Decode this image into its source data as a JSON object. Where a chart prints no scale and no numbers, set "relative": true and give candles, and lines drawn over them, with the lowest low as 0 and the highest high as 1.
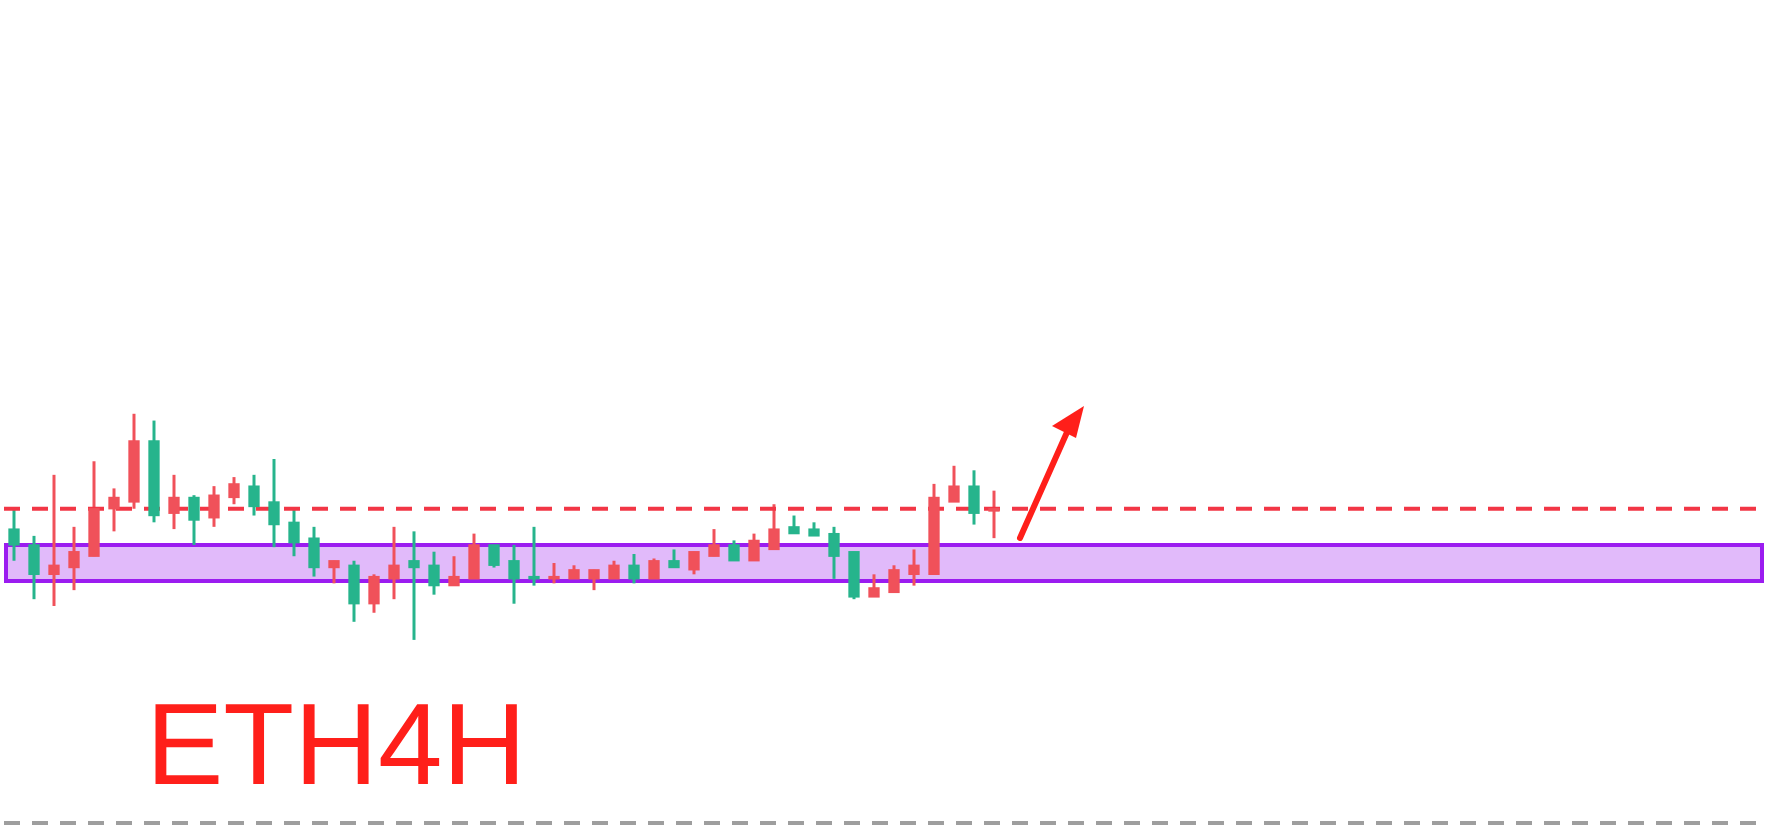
{
  "chart_data": {
    "type": "candlestick",
    "relative": true,
    "categories": [
      null,
      null,
      null,
      null,
      null,
      null,
      null,
      null,
      null,
      null,
      null,
      null,
      null,
      null,
      null,
      null,
      null,
      null,
      null,
      null,
      null,
      null,
      null,
      null,
      null,
      null,
      null,
      null,
      null,
      null,
      null,
      null,
      null,
      null,
      null,
      null,
      null,
      null,
      null,
      null,
      null,
      null,
      null,
      null,
      null,
      null,
      null,
      null,
      null,
      null,
      null,
      null,
      null,
      null,
      null,
      null,
      null,
      null,
      null,
      null,
      null,
      null,
      null,
      null,
      null,
      null,
      null,
      null,
      null,
      null,
      null,
      null,
      null,
      null,
      null,
      null,
      null,
      null,
      null,
      null,
      null,
      null,
      null,
      null,
      null,
      null,
      null,
      null
    ],
    "ohlc": [
      [
        0.49,
        0.58,
        0.35,
        0.42
      ],
      [
        0.42,
        0.46,
        0.18,
        0.29
      ],
      [
        0.29,
        0.73,
        0.15,
        0.33
      ],
      [
        0.32,
        0.5,
        0.22,
        0.39
      ],
      [
        0.37,
        0.79,
        0.37,
        0.58
      ],
      [
        0.58,
        0.67,
        0.48,
        0.63
      ],
      [
        0.61,
        1,
        0.58,
        0.88
      ],
      [
        0.88,
        0.97,
        0.52,
        0.55
      ],
      [
        0.56,
        0.73,
        0.49,
        0.63
      ],
      [
        0.63,
        0.64,
        0.42,
        0.53
      ],
      [
        0.54,
        0.68,
        0.5,
        0.64
      ],
      [
        0.63,
        0.72,
        0.6,
        0.69
      ],
      [
        0.68,
        0.73,
        0.55,
        0.59
      ],
      [
        0.61,
        0.8,
        0.41,
        0.51
      ],
      [
        0.52,
        0.58,
        0.37,
        0.43
      ],
      [
        0.45,
        0.5,
        0.28,
        0.32
      ],
      [
        0.32,
        0.35,
        0.25,
        0.35
      ],
      [
        0.33,
        0.35,
        0.08,
        0.16
      ],
      [
        0.16,
        0.29,
        0.12,
        0.28
      ],
      [
        0.27,
        0.5,
        0.18,
        0.33
      ],
      [
        0.35,
        0.48,
        0,
        0.32
      ],
      [
        0.33,
        0.39,
        0.2,
        0.24
      ],
      [
        0.24,
        0.37,
        0.24,
        0.28
      ],
      [
        0.27,
        0.47,
        0.27,
        0.42
      ],
      [
        0.42,
        0.42,
        0.32,
        0.33
      ],
      [
        0.35,
        0.42,
        0.16,
        0.27
      ],
      [
        0.28,
        0.5,
        0.24,
        0.27
      ],
      [
        0.27,
        0.34,
        0.25,
        0.28
      ],
      [
        0.27,
        0.33,
        0.27,
        0.31
      ],
      [
        0.27,
        0.31,
        0.22,
        0.31
      ],
      [
        0.27,
        0.35,
        0.27,
        0.33
      ],
      [
        0.33,
        0.38,
        0.25,
        0.27
      ],
      [
        0.27,
        0.36,
        0.27,
        0.35
      ],
      [
        0.35,
        0.4,
        0.32,
        0.32
      ],
      [
        0.31,
        0.39,
        0.29,
        0.39
      ],
      [
        0.37,
        0.49,
        0.37,
        0.42
      ],
      [
        0.42,
        0.44,
        0.35,
        0.35
      ],
      [
        0.35,
        0.47,
        0.35,
        0.44
      ],
      [
        0.4,
        0.6,
        0.4,
        0.49
      ],
      [
        0.5,
        0.55,
        0.47,
        0.47
      ],
      [
        0.49,
        0.52,
        0.46,
        0.46
      ],
      [
        0.47,
        0.5,
        0.27,
        0.37
      ],
      [
        0.39,
        0.39,
        0.18,
        0.19
      ],
      [
        0.19,
        0.29,
        0.19,
        0.23
      ],
      [
        0.21,
        0.33,
        0.21,
        0.31
      ],
      [
        0.29,
        0.4,
        0.24,
        0.33
      ],
      [
        0.29,
        0.69,
        0.29,
        0.63
      ],
      [
        0.61,
        0.77,
        0.61,
        0.68
      ],
      [
        0.68,
        0.75,
        0.51,
        0.56
      ],
      [
        0.57,
        0.66,
        0.45,
        0.58
      ],
      null,
      null,
      null,
      null,
      null,
      null,
      null,
      null,
      null,
      null,
      null,
      null,
      null,
      null,
      null,
      null,
      null,
      null,
      null,
      null,
      null,
      null,
      null,
      null,
      null,
      null,
      null,
      null,
      null,
      null,
      null,
      null,
      null,
      null,
      null,
      null,
      null,
      null
    ],
    "colors": [
      "#26b48c",
      "#26b48c",
      "#f0515a",
      "#f0515a",
      "#f0515a",
      "#f0515a",
      "#f0515a",
      "#26b48c",
      "#f0515a",
      "#26b48c",
      "#f0515a",
      "#f0515a",
      "#26b48c",
      "#26b48c",
      "#26b48c",
      "#26b48c",
      "#f0515a",
      "#26b48c",
      "#f0515a",
      "#f0515a",
      "#26b48c",
      "#26b48c",
      "#f0515a",
      "#f0515a",
      "#26b48c",
      "#26b48c",
      "#26b48c",
      "#f0515a",
      "#f0515a",
      "#f0515a",
      "#f0515a",
      "#26b48c",
      "#f0515a",
      "#26b48c",
      "#f0515a",
      "#f0515a",
      "#26b48c",
      "#f0515a",
      "#f0515a",
      "#26b48c",
      "#26b48c",
      "#26b48c",
      "#26b48c",
      "#f0515a",
      "#f0515a",
      "#f0515a",
      "#f0515a",
      "#f0515a",
      "#26b48c",
      "#f0515a",
      null,
      null,
      null,
      null,
      null,
      null,
      null,
      null,
      null,
      null,
      null,
      null,
      null,
      null,
      null,
      null,
      null,
      null,
      null,
      null,
      null,
      null,
      null,
      null,
      null,
      null,
      null,
      null,
      null,
      null,
      null,
      null,
      null,
      null,
      null,
      null,
      null,
      null
    ],
    "ref_lines": [
      {
        "axis": "y",
        "value": 0.58,
        "label": null,
        "color": "#f23645",
        "line_style": "dashed"
      },
      {
        "axis": "y",
        "value": -0.81,
        "label": null,
        "color": "#9e9e9e",
        "line_style": "dashed"
      }
    ],
    "bands": [
      {
        "axis": "y",
        "from": 0.26,
        "to": 0.42,
        "label": null,
        "color": "#9b1cf0"
      }
    ],
    "annotations": [
      "ETH4H"
    ],
    "legend": false
  }
}
